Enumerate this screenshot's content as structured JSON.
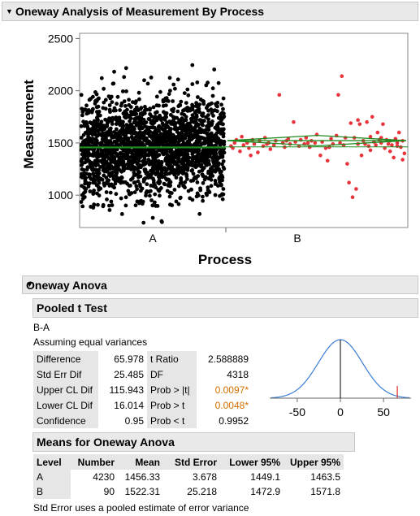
{
  "report": {
    "title": "Oneway Analysis of Measurement By Process"
  },
  "chart_data": {
    "type": "scatter",
    "title": "",
    "xlabel": "Process",
    "ylabel": "Measurement",
    "categories": [
      "A",
      "B"
    ],
    "ylim": [
      690,
      2550
    ],
    "yticks": [
      "1000",
      "1500",
      "2000",
      "2500"
    ],
    "series": [
      {
        "name": "A",
        "n": 4230,
        "mean": 1456.33,
        "color": "#000000"
      },
      {
        "name": "B",
        "n": 90,
        "mean": 1522.31,
        "color": "#e8333b"
      }
    ],
    "mean_line_color": "#1f8a1f",
    "B_points": [
      [
        0.02,
        1470
      ],
      [
        0.04,
        1500
      ],
      [
        0.05,
        1530
      ],
      [
        0.07,
        1420
      ],
      [
        0.08,
        1560
      ],
      [
        0.09,
        1480
      ],
      [
        0.11,
        1500
      ],
      [
        0.12,
        1450
      ],
      [
        0.14,
        1530
      ],
      [
        0.15,
        1490
      ],
      [
        0.17,
        1410
      ],
      [
        0.18,
        1520
      ],
      [
        0.2,
        1470
      ],
      [
        0.21,
        1550
      ],
      [
        0.23,
        1500
      ],
      [
        0.24,
        1440
      ],
      [
        0.26,
        1480
      ],
      [
        0.27,
        1520
      ],
      [
        0.29,
        1960
      ],
      [
        0.31,
        1500
      ],
      [
        0.32,
        1460
      ],
      [
        0.34,
        1540
      ],
      [
        0.35,
        1490
      ],
      [
        0.37,
        1700
      ],
      [
        0.38,
        1510
      ],
      [
        0.4,
        1470
      ],
      [
        0.41,
        1530
      ],
      [
        0.43,
        1490
      ],
      [
        0.44,
        1550
      ],
      [
        0.46,
        1460
      ],
      [
        0.47,
        1520
      ],
      [
        0.49,
        1500
      ],
      [
        0.5,
        1580
      ],
      [
        0.52,
        1380
      ],
      [
        0.53,
        1510
      ],
      [
        0.55,
        1450
      ],
      [
        0.56,
        1330
      ],
      [
        0.58,
        1540
      ],
      [
        0.59,
        1490
      ],
      [
        0.61,
        1570
      ],
      [
        0.62,
        1960
      ],
      [
        0.64,
        2140
      ],
      [
        0.65,
        1480
      ],
      [
        0.67,
        1300
      ],
      [
        0.68,
        1120
      ],
      [
        0.69,
        1690
      ],
      [
        0.7,
        980
      ],
      [
        0.71,
        1550
      ],
      [
        0.72,
        1060
      ],
      [
        0.73,
        1720
      ],
      [
        0.74,
        1680
      ],
      [
        0.75,
        1380
      ],
      [
        0.76,
        1520
      ],
      [
        0.77,
        1490
      ],
      [
        0.78,
        1700
      ],
      [
        0.79,
        1470
      ],
      [
        0.8,
        1560
      ],
      [
        0.81,
        1750
      ],
      [
        0.82,
        1510
      ],
      [
        0.83,
        1480
      ],
      [
        0.84,
        1600
      ],
      [
        0.85,
        1530
      ],
      [
        0.86,
        1500
      ],
      [
        0.87,
        1680
      ],
      [
        0.88,
        1450
      ],
      [
        0.89,
        1530
      ],
      [
        0.9,
        1490
      ],
      [
        0.91,
        1520
      ],
      [
        0.92,
        1480
      ],
      [
        0.93,
        1360
      ],
      [
        0.94,
        1540
      ],
      [
        0.95,
        1500
      ],
      [
        0.96,
        1600
      ],
      [
        0.97,
        1460
      ],
      [
        0.98,
        1520
      ],
      [
        0.99,
        1400
      ],
      [
        0.03,
        1450
      ],
      [
        0.13,
        1380
      ],
      [
        0.22,
        1490
      ],
      [
        0.33,
        1520
      ],
      [
        0.45,
        1500
      ],
      [
        0.57,
        1460
      ],
      [
        0.63,
        1500
      ],
      [
        0.66,
        1550
      ],
      [
        0.73,
        1490
      ],
      [
        0.8,
        1430
      ],
      [
        0.86,
        1550
      ],
      [
        0.91,
        1420
      ],
      [
        0.95,
        1470
      ],
      [
        0.98,
        1340
      ]
    ]
  },
  "anova": {
    "title": "Oneway Anova",
    "ttest": {
      "title": "Pooled t Test",
      "comparison": "B-A",
      "assumption": "Assuming equal variances",
      "rows": [
        {
          "label": "Difference",
          "value": "65.978",
          "stat_label": "t Ratio",
          "stat_value": "2.588889"
        },
        {
          "label": "Std Err Dif",
          "value": "25.485",
          "stat_label": "DF",
          "stat_value": "4318"
        },
        {
          "label": "Upper CL Dif",
          "value": "115.943",
          "stat_label": "Prob > |t|",
          "stat_value": "0.0097*"
        },
        {
          "label": "Lower CL Dif",
          "value": "16.014",
          "stat_label": "Prob > t",
          "stat_value": "0.0048*"
        },
        {
          "label": "Confidence",
          "value": "0.95",
          "stat_label": "Prob < t",
          "stat_value": "0.9952"
        }
      ],
      "dist_chart": {
        "xticks": [
          "-50",
          "0",
          "50"
        ],
        "xrange": [
          -80,
          80
        ],
        "observed": 65.978,
        "se": 25.485
      }
    },
    "means": {
      "title": "Means for Oneway Anova",
      "columns": [
        "Level",
        "Number",
        "Mean",
        "Std Error",
        "Lower 95%",
        "Upper 95%"
      ],
      "rows": [
        [
          "A",
          "4230",
          "1456.33",
          "3.678",
          "1449.1",
          "1463.5"
        ],
        [
          "B",
          "90",
          "1522.31",
          "25.218",
          "1472.9",
          "1571.8"
        ]
      ],
      "footnote": "Std Error uses a pooled estimate of error variance"
    }
  }
}
